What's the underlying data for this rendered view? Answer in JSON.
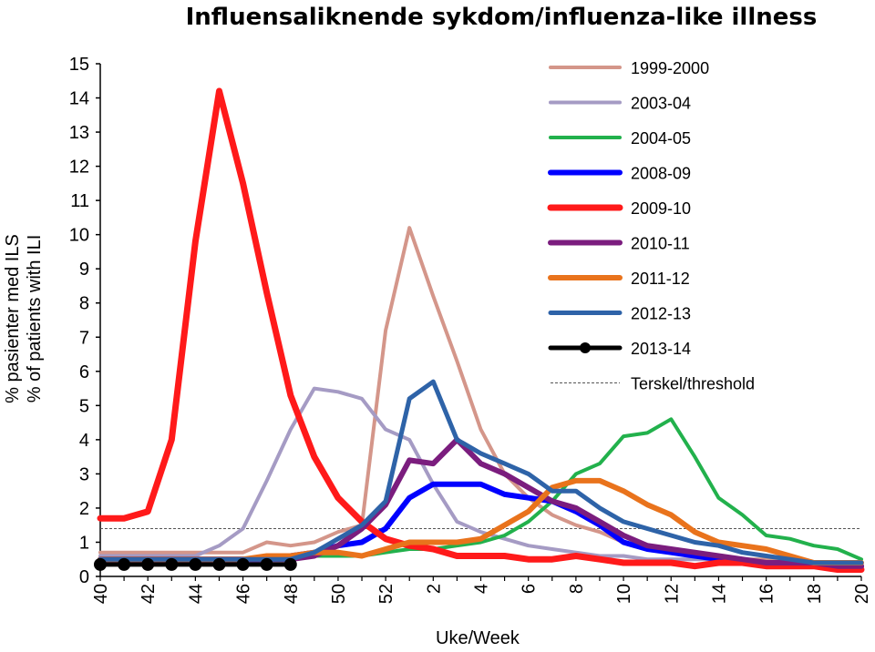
{
  "chart_data": {
    "type": "line",
    "title": "Influensaliknende sykdom/influenza-like illness",
    "xlabel": "Uke/Week",
    "ylabel_lines": [
      "% pasienter med ILS",
      "% of patients with ILI"
    ],
    "ylim": [
      0,
      15
    ],
    "yticks": [
      "0",
      "1",
      "2",
      "3",
      "4",
      "5",
      "6",
      "7",
      "8",
      "9",
      "10",
      "11",
      "12",
      "13",
      "14",
      "15"
    ],
    "x": [
      "40",
      "41",
      "42",
      "43",
      "44",
      "45",
      "46",
      "47",
      "48",
      "49",
      "50",
      "51",
      "52",
      "1",
      "2",
      "3",
      "4",
      "5",
      "6",
      "7",
      "8",
      "9",
      "10",
      "11",
      "12",
      "13",
      "14",
      "15",
      "16",
      "17",
      "18",
      "19",
      "20"
    ],
    "xtick_labels": [
      "40",
      "42",
      "44",
      "46",
      "48",
      "50",
      "52",
      "2",
      "4",
      "6",
      "8",
      "10",
      "12",
      "14",
      "16",
      "18",
      "20"
    ],
    "grid": false,
    "legend_position": "top-right",
    "threshold": {
      "name": "Terskel/threshold",
      "value": 1.4,
      "color": "#555555",
      "dashed": true
    },
    "series": [
      {
        "name": "1999-2000",
        "color": "#d4968a",
        "width": 4,
        "markers": false,
        "values": [
          0.7,
          0.7,
          0.7,
          0.7,
          0.7,
          0.7,
          0.7,
          1.0,
          0.9,
          1.0,
          1.3,
          1.5,
          7.2,
          10.2,
          8.2,
          6.3,
          4.3,
          3.0,
          2.3,
          1.8,
          1.5,
          1.3,
          1.0,
          0.8,
          0.7,
          0.7,
          0.6,
          0.5,
          0.5,
          0.5,
          0.4,
          0.4,
          0.4
        ]
      },
      {
        "name": "2003-04",
        "color": "#a59bc4",
        "width": 4,
        "markers": false,
        "values": [
          0.6,
          0.6,
          0.6,
          0.6,
          0.6,
          0.9,
          1.4,
          2.8,
          4.3,
          5.5,
          5.4,
          5.2,
          4.3,
          4.0,
          2.7,
          1.6,
          1.3,
          1.1,
          0.9,
          0.8,
          0.7,
          0.6,
          0.6,
          0.5,
          0.5,
          0.5,
          0.5,
          0.4,
          0.4,
          0.4,
          0.4,
          0.4,
          0.4
        ]
      },
      {
        "name": "2004-05",
        "color": "#22b14c",
        "width": 4,
        "markers": false,
        "values": [
          0.5,
          0.5,
          0.5,
          0.5,
          0.5,
          0.5,
          0.5,
          0.5,
          0.5,
          0.6,
          0.6,
          0.6,
          0.7,
          0.8,
          0.8,
          0.9,
          1.0,
          1.2,
          1.6,
          2.2,
          3.0,
          3.3,
          4.1,
          4.2,
          4.6,
          3.5,
          2.3,
          1.8,
          1.2,
          1.1,
          0.9,
          0.8,
          0.5
        ]
      },
      {
        "name": "2008-09",
        "color": "#0000ff",
        "width": 6,
        "markers": false,
        "values": [
          0.5,
          0.5,
          0.5,
          0.5,
          0.5,
          0.5,
          0.5,
          0.5,
          0.6,
          0.7,
          0.9,
          1.0,
          1.4,
          2.3,
          2.7,
          2.7,
          2.7,
          2.4,
          2.3,
          2.2,
          1.9,
          1.5,
          1.0,
          0.8,
          0.7,
          0.6,
          0.5,
          0.4,
          0.4,
          0.4,
          0.4,
          0.3,
          0.3
        ]
      },
      {
        "name": "2009-10",
        "color": "#ff1a1a",
        "width": 7,
        "markers": false,
        "values": [
          1.7,
          1.7,
          1.9,
          4.0,
          9.8,
          14.2,
          11.5,
          8.3,
          5.3,
          3.5,
          2.3,
          1.6,
          1.1,
          0.9,
          0.8,
          0.6,
          0.6,
          0.6,
          0.5,
          0.5,
          0.6,
          0.5,
          0.4,
          0.4,
          0.4,
          0.3,
          0.4,
          0.4,
          0.3,
          0.3,
          0.3,
          0.2,
          0.2
        ]
      },
      {
        "name": "2010-11",
        "color": "#7b1d7e",
        "width": 6,
        "markers": false,
        "values": [
          0.5,
          0.5,
          0.5,
          0.5,
          0.5,
          0.5,
          0.5,
          0.5,
          0.5,
          0.6,
          0.9,
          1.4,
          2.1,
          3.4,
          3.3,
          4.0,
          3.3,
          3.0,
          2.6,
          2.2,
          2.0,
          1.6,
          1.2,
          0.9,
          0.8,
          0.7,
          0.6,
          0.5,
          0.4,
          0.4,
          0.4,
          0.3,
          0.3
        ]
      },
      {
        "name": "2011-12",
        "color": "#e9731c",
        "width": 6,
        "markers": false,
        "values": [
          0.5,
          0.5,
          0.5,
          0.5,
          0.5,
          0.5,
          0.5,
          0.6,
          0.6,
          0.7,
          0.7,
          0.6,
          0.8,
          1.0,
          1.0,
          1.0,
          1.1,
          1.5,
          1.9,
          2.6,
          2.8,
          2.8,
          2.5,
          2.1,
          1.8,
          1.3,
          1.0,
          0.9,
          0.8,
          0.6,
          0.4,
          0.4,
          0.4
        ]
      },
      {
        "name": "2012-13",
        "color": "#2e63a8",
        "width": 5,
        "markers": false,
        "values": [
          0.5,
          0.5,
          0.5,
          0.5,
          0.5,
          0.5,
          0.5,
          0.5,
          0.5,
          0.7,
          1.1,
          1.5,
          2.2,
          5.2,
          5.7,
          4.0,
          3.6,
          3.3,
          3.0,
          2.5,
          2.5,
          2.0,
          1.6,
          1.4,
          1.2,
          1.0,
          0.9,
          0.7,
          0.6,
          0.5,
          0.4,
          0.4,
          0.4
        ]
      },
      {
        "name": "2013-14",
        "color": "#000000",
        "width": 5,
        "markers": true,
        "values": [
          0.35,
          0.35,
          0.35,
          0.35,
          0.35,
          0.35,
          0.35,
          0.35,
          0.35,
          null,
          null,
          null,
          null,
          null,
          null,
          null,
          null,
          null,
          null,
          null,
          null,
          null,
          null,
          null,
          null,
          null,
          null,
          null,
          null,
          null,
          null,
          null,
          null
        ]
      }
    ]
  }
}
